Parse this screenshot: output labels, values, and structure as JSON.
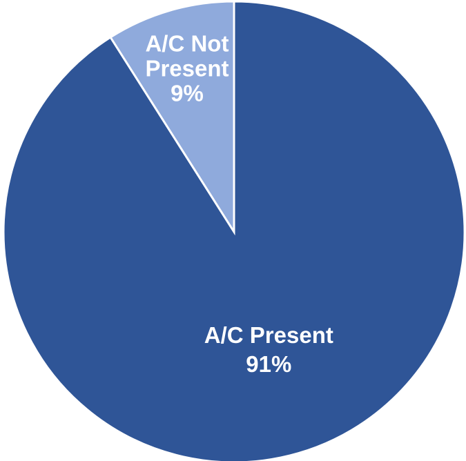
{
  "chart_data": {
    "type": "pie",
    "title": "",
    "slices": [
      {
        "label": "A/C Present",
        "value": 91,
        "value_label": "91%",
        "color": "#2F5597"
      },
      {
        "label": "A/C Not Present",
        "label_lines": [
          "A/C Not",
          "Present"
        ],
        "value": 9,
        "value_label": "9%",
        "color": "#8FAADC"
      }
    ],
    "start_angle_deg": 0,
    "direction": "clockwise",
    "legend": "none"
  }
}
